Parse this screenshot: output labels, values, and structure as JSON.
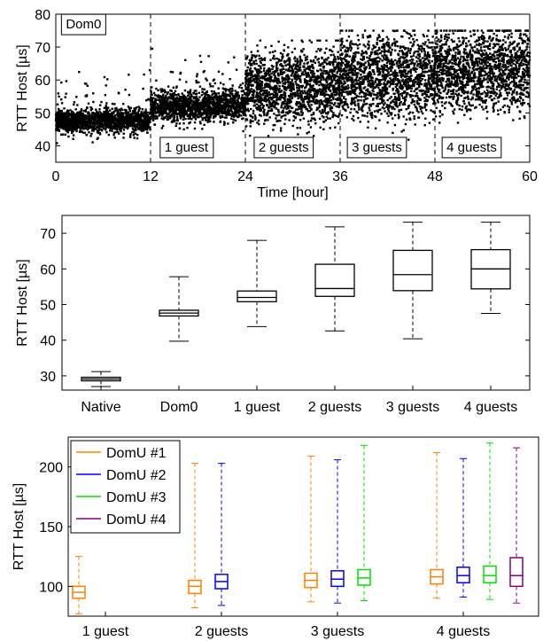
{
  "chart_data": [
    {
      "type": "scatter",
      "xlabel": "Time [hour]",
      "ylabel": "RTT Host [µs]",
      "xlim": [
        0,
        60
      ],
      "ylim": [
        35,
        80
      ],
      "xticks": [
        "0",
        "12",
        "24",
        "36",
        "48",
        "60"
      ],
      "yticks": [
        "40",
        "50",
        "60",
        "70",
        "80"
      ],
      "grid": false,
      "vlines": [
        12,
        24,
        36,
        48
      ],
      "annotations": [
        {
          "text": "Dom0",
          "x": 0.6,
          "y": 77
        },
        {
          "text": "1 guest",
          "x": 13.1,
          "y": 39.6
        },
        {
          "text": "2 guests",
          "x": 25.0,
          "y": 39.6
        },
        {
          "text": "3 guests",
          "x": 36.8,
          "y": 39.6
        },
        {
          "text": "4 guests",
          "x": 48.8,
          "y": 39.6
        }
      ],
      "segments": [
        {
          "x": [
            0,
            12
          ],
          "median": 47.5,
          "spread": 1.6,
          "outlier_lo": 40,
          "outlier_hi": 63
        },
        {
          "x": [
            12,
            24
          ],
          "median": 52,
          "spread": 2.2,
          "outlier_lo": 44,
          "outlier_hi": 70
        },
        {
          "x": [
            24,
            36
          ],
          "median": 55,
          "spread": 4.5,
          "outlier_lo": 43,
          "outlier_hi": 72
        },
        {
          "x": [
            36,
            48
          ],
          "median": 58,
          "spread": 5.5,
          "outlier_lo": 40,
          "outlier_hi": 75
        },
        {
          "x": [
            48,
            60
          ],
          "median": 60,
          "spread": 5.5,
          "outlier_lo": 47,
          "outlier_hi": 75
        }
      ]
    },
    {
      "type": "box",
      "ylabel": "RTT Host [µs]",
      "ylim": [
        26,
        75
      ],
      "yticks": [
        "30",
        "40",
        "50",
        "60",
        "70"
      ],
      "categories": [
        "Native",
        "Dom0",
        "1 guest",
        "2 guests",
        "3 guests",
        "4 guests"
      ],
      "boxes": [
        {
          "min": 27.0,
          "q1": 28.6,
          "median": 29.1,
          "q3": 29.6,
          "max": 31.2
        },
        {
          "min": 39.7,
          "q1": 46.8,
          "median": 47.6,
          "q3": 48.4,
          "max": 57.8
        },
        {
          "min": 43.8,
          "q1": 50.8,
          "median": 52.0,
          "q3": 53.8,
          "max": 68.0
        },
        {
          "min": 42.6,
          "q1": 52.3,
          "median": 54.5,
          "q3": 61.3,
          "max": 71.8
        },
        {
          "min": 40.4,
          "q1": 53.9,
          "median": 58.4,
          "q3": 65.2,
          "max": 73.1
        },
        {
          "min": 47.5,
          "q1": 54.4,
          "median": 60.0,
          "q3": 65.4,
          "max": 73.1
        }
      ]
    },
    {
      "type": "box",
      "ylabel": "RTT Host [µs]",
      "ylim": [
        75,
        225
      ],
      "yticks": [
        "100",
        "150",
        "200"
      ],
      "categories": [
        "1 guest",
        "2 guests",
        "3 guests",
        "4 guests"
      ],
      "legend": {
        "position": "top-left",
        "entries": [
          "DomU #1",
          "DomU #2",
          "DomU #3",
          "DomU #4"
        ]
      },
      "colors": [
        "#ff8000",
        "#0000ff",
        "#00e000",
        "#800080"
      ],
      "groups": [
        {
          "category": "1 guest",
          "boxes": [
            {
              "series": 0,
              "min": 77,
              "q1": 90,
              "median": 95,
              "q3": 100,
              "max": 125
            }
          ]
        },
        {
          "category": "2 guests",
          "boxes": [
            {
              "series": 0,
              "min": 82,
              "q1": 94,
              "median": 100,
              "q3": 105,
              "max": 203
            },
            {
              "series": 1,
              "min": 84,
              "q1": 98,
              "median": 104,
              "q3": 110,
              "max": 203
            }
          ]
        },
        {
          "category": "3 guests",
          "boxes": [
            {
              "series": 0,
              "min": 87,
              "q1": 99,
              "median": 105,
              "q3": 111,
              "max": 209
            },
            {
              "series": 1,
              "min": 86,
              "q1": 100,
              "median": 106,
              "q3": 113,
              "max": 206
            },
            {
              "series": 2,
              "min": 88,
              "q1": 101,
              "median": 107,
              "q3": 114,
              "max": 218
            }
          ]
        },
        {
          "category": "4 guests",
          "boxes": [
            {
              "series": 0,
              "min": 90,
              "q1": 102,
              "median": 108,
              "q3": 114,
              "max": 212
            },
            {
              "series": 1,
              "min": 91,
              "q1": 103,
              "median": 109,
              "q3": 116,
              "max": 207
            },
            {
              "series": 2,
              "min": 89,
              "q1": 103,
              "median": 109,
              "q3": 117,
              "max": 220
            },
            {
              "series": 3,
              "min": 86,
              "q1": 100,
              "median": 109,
              "q3": 124,
              "max": 216
            }
          ]
        }
      ]
    }
  ]
}
